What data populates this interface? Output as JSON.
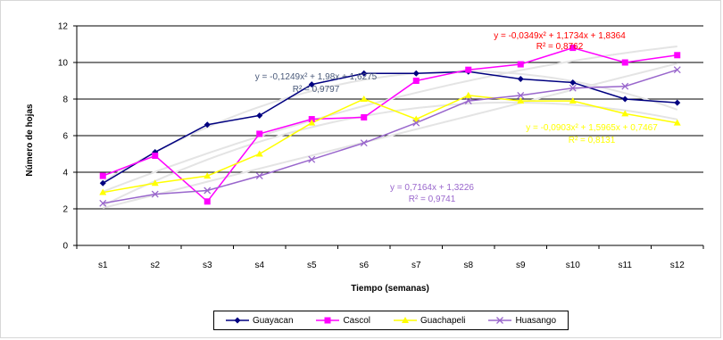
{
  "chart_data": {
    "type": "line",
    "title": "",
    "xlabel": "Tiempo (semanas)",
    "ylabel": "Número de hojas",
    "categories": [
      "s1",
      "s2",
      "s3",
      "s4",
      "s5",
      "s6",
      "s7",
      "s8",
      "s9",
      "s10",
      "s11",
      "s12"
    ],
    "ylim": [
      0,
      12
    ],
    "yticks": [
      0,
      2,
      4,
      6,
      8,
      10,
      12
    ],
    "grid": true,
    "legend_position": "bottom",
    "series": [
      {
        "name": "Guayacan",
        "color": "#000080",
        "marker": "diamond",
        "values": [
          3.4,
          5.1,
          6.6,
          7.1,
          8.8,
          9.4,
          9.4,
          9.5,
          9.1,
          8.9,
          8.0,
          7.8
        ]
      },
      {
        "name": "Cascol",
        "color": "#ff00ff",
        "marker": "square",
        "values": [
          3.8,
          4.9,
          2.4,
          6.1,
          6.9,
          7.0,
          9.0,
          9.6,
          9.9,
          10.8,
          10.0,
          10.4
        ]
      },
      {
        "name": "Guachapeli",
        "color": "#ffff00",
        "marker": "triangle",
        "values": [
          2.9,
          3.4,
          3.8,
          5.0,
          6.7,
          8.0,
          6.9,
          8.2,
          7.9,
          7.9,
          7.2,
          6.7
        ]
      },
      {
        "name": "Huasango",
        "color": "#9966cc",
        "marker": "x",
        "values": [
          2.3,
          2.8,
          3.0,
          3.8,
          4.7,
          5.6,
          6.7,
          7.9,
          8.2,
          8.6,
          8.7,
          9.6
        ]
      }
    ],
    "annotations": [
      {
        "id": "cascol",
        "color": "#ff0000",
        "line1": "y = -0,0349x² + 1,1734x + 1,8364",
        "line2": "R² = 0,8762"
      },
      {
        "id": "guayacan",
        "color": "#4a5a7a",
        "line1": "y = -0,1249x² + 1,98x + 1,6275",
        "line2": "R² = 0,9797"
      },
      {
        "id": "guachapeli",
        "color": "#ffff00",
        "line1": "y = -0,0903x² + 1,5965x + 0,7467",
        "line2": "R² = 0,8131"
      },
      {
        "id": "huasango",
        "color": "#9966cc",
        "line1": "y = 0,7164x + 1,3226",
        "line2": "R² = 0,9741"
      }
    ]
  }
}
